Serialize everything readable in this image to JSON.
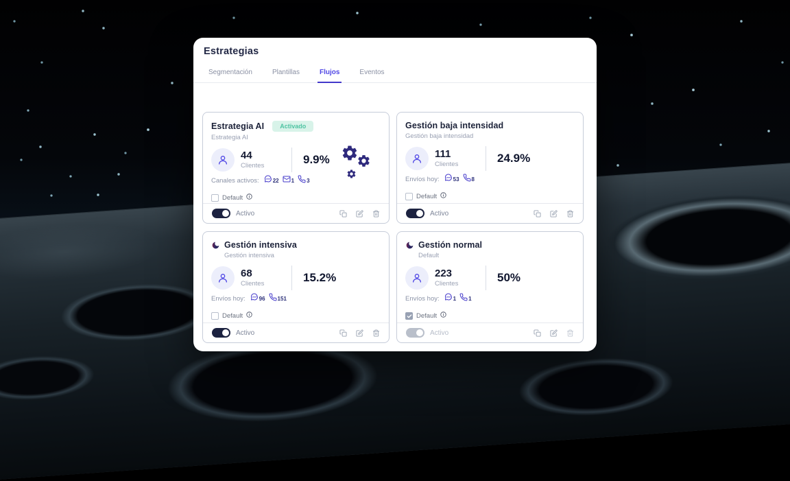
{
  "window": {
    "title": "Estrategias"
  },
  "tabs": [
    {
      "label": "Segmentación",
      "active": false
    },
    {
      "label": "Plantillas",
      "active": false
    },
    {
      "label": "Flujos",
      "active": true
    },
    {
      "label": "Eventos",
      "active": false
    }
  ],
  "colors": {
    "accent": "#4f46e5",
    "tab_underline": "#4338ca",
    "badge_bg": "#d8f3e9",
    "badge_text": "#4ec3a2",
    "gears": "#2f2a7d",
    "toggle_on": "#1c2240",
    "toggle_disabled": "#b9bfca"
  },
  "cards": [
    {
      "title": "Estrategia AI",
      "badge": "Activado",
      "subtitle": "Estrategia AI",
      "has_moon_icon": false,
      "has_gears": true,
      "clients": "44",
      "clients_label": "Clientes",
      "percent": "9.9%",
      "channels_label": "Canales activos:",
      "channels": [
        {
          "icon": "chat-icon",
          "value": "22"
        },
        {
          "icon": "mail-icon",
          "value": "1"
        },
        {
          "icon": "phone-icon",
          "value": "3"
        }
      ],
      "default_label": "Default",
      "default_checked": false,
      "toggle_label": "Activo",
      "toggle_on": true,
      "disabled": false
    },
    {
      "title": "Gestión baja intensidad",
      "badge": null,
      "subtitle": "Gestión baja intensidad",
      "has_moon_icon": false,
      "has_gears": false,
      "clients": "111",
      "clients_label": "Clientes",
      "percent": "24.9%",
      "channels_label": "Envíos hoy:",
      "channels": [
        {
          "icon": "chat-icon",
          "value": "53"
        },
        {
          "icon": "phone-icon",
          "value": "8"
        }
      ],
      "default_label": "Default",
      "default_checked": false,
      "toggle_label": "Activo",
      "toggle_on": true,
      "disabled": false
    },
    {
      "title": "Gestión intensiva",
      "badge": null,
      "subtitle": "Gestión intensiva",
      "has_moon_icon": true,
      "has_gears": false,
      "clients": "68",
      "clients_label": "Clientes",
      "percent": "15.2%",
      "channels_label": "Envíos hoy:",
      "channels": [
        {
          "icon": "chat-icon",
          "value": "96"
        },
        {
          "icon": "phone-icon",
          "value": "151"
        }
      ],
      "default_label": "Default",
      "default_checked": false,
      "toggle_label": "Activo",
      "toggle_on": true,
      "disabled": false
    },
    {
      "title": "Gestión normal",
      "badge": null,
      "subtitle": "Default",
      "has_moon_icon": true,
      "has_gears": false,
      "clients": "223",
      "clients_label": "Clientes",
      "percent": "50%",
      "channels_label": "Envíos hoy:",
      "channels": [
        {
          "icon": "chat-icon",
          "value": "1"
        },
        {
          "icon": "phone-icon",
          "value": "1"
        }
      ],
      "default_label": "Default",
      "default_checked": true,
      "toggle_label": "Activo",
      "toggle_on": true,
      "disabled": true
    }
  ]
}
